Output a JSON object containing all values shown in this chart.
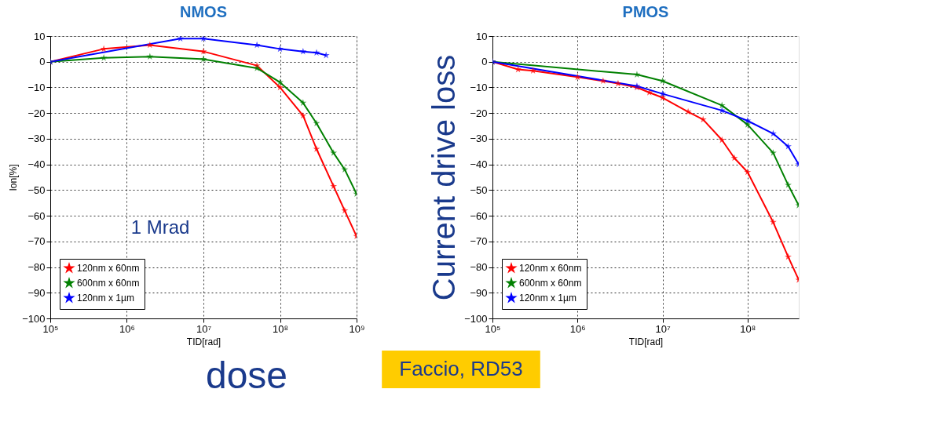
{
  "chart_data": [
    {
      "type": "line",
      "title": "NMOS",
      "xlabel": "TID[rad]",
      "ylabel": "Ion[%]",
      "log": "x",
      "grid": true,
      "legend": "bottom left",
      "marker": "star",
      "line_style": "solid",
      "xlim": [
        100000,
        1000000000
      ],
      "xticks": [
        {
          "value": 100000,
          "label": "10⁵"
        },
        {
          "value": 1000000,
          "label": "10⁶"
        },
        {
          "value": 10000000,
          "label": "10⁷"
        },
        {
          "value": 100000000,
          "label": "10⁸"
        },
        {
          "value": 1000000000,
          "label": "10⁹"
        }
      ],
      "ylim": [
        -100,
        10
      ],
      "yticks": [
        -100,
        -90,
        -80,
        -70,
        -60,
        -50,
        -40,
        -30,
        -20,
        -10,
        0,
        10
      ],
      "annotations": [
        "1 Mrad",
        "dose"
      ],
      "series": [
        {
          "name": "120nm x 60nm",
          "color": "#ff0000",
          "x": [
            100000,
            500000,
            2000000,
            10000000,
            50000000,
            100000000,
            200000000,
            300000000,
            500000000,
            700000000,
            1000000000
          ],
          "values": [
            0,
            5,
            6.5,
            4,
            -1.5,
            -10,
            -21,
            -34,
            -48.5,
            -58,
            -68
          ]
        },
        {
          "name": "600nm x 60nm",
          "color": "#008000",
          "x": [
            100000,
            500000,
            2000000,
            10000000,
            50000000,
            100000000,
            200000000,
            300000000,
            500000000,
            700000000,
            1000000000
          ],
          "values": [
            0,
            1.5,
            2,
            1,
            -2.5,
            -8,
            -16,
            -24,
            -35.5,
            -42,
            -51.5
          ]
        },
        {
          "name": "120nm x 1µm",
          "color": "#0000ff",
          "x": [
            100000,
            5000000,
            10000000,
            50000000,
            100000000,
            200000000,
            300000000,
            400000000
          ],
          "values": [
            0,
            9,
            9,
            6.5,
            5,
            4,
            3.5,
            2.5
          ]
        }
      ]
    },
    {
      "type": "line",
      "title": "PMOS",
      "xlabel": "TID[rad]",
      "ylabel": "Current drive loss",
      "log": "x",
      "grid": true,
      "legend": "bottom left",
      "marker": "star",
      "line_style": "solid",
      "xlim": [
        100000,
        400000000
      ],
      "xticks": [
        {
          "value": 100000,
          "label": "10⁵"
        },
        {
          "value": 1000000,
          "label": "10⁶"
        },
        {
          "value": 10000000,
          "label": "10⁷"
        },
        {
          "value": 100000000,
          "label": "10⁸"
        }
      ],
      "ylim": [
        -100,
        10
      ],
      "yticks": [
        -100,
        -90,
        -80,
        -70,
        -60,
        -50,
        -40,
        -30,
        -20,
        -10,
        0,
        10
      ],
      "annotations": [
        "Faccio, RD53"
      ],
      "series": [
        {
          "name": "120nm x 60nm",
          "color": "#ff0000",
          "x": [
            100000,
            200000,
            300000,
            1000000,
            2000000,
            3000000,
            5000000,
            7000000,
            10000000,
            20000000,
            30000000,
            50000000,
            70000000,
            100000000,
            200000000,
            300000000,
            400000000
          ],
          "values": [
            0,
            -3,
            -3.5,
            -6,
            -7.5,
            -8.5,
            -10,
            -12,
            -14,
            -19.5,
            -22.5,
            -30.5,
            -37.5,
            -43,
            -62.5,
            -76,
            -85
          ]
        },
        {
          "name": "600nm x 60nm",
          "color": "#008000",
          "x": [
            100000,
            5000000,
            10000000,
            50000000,
            100000000,
            200000000,
            300000000,
            400000000
          ],
          "values": [
            0,
            -5,
            -7.5,
            -17,
            -24.5,
            -35.5,
            -48,
            -56
          ]
        },
        {
          "name": "120nm x 1µm",
          "color": "#0000ff",
          "x": [
            100000,
            5000000,
            10000000,
            50000000,
            100000000,
            200000000,
            300000000,
            400000000
          ],
          "values": [
            0,
            -9.5,
            -12.5,
            -19,
            -23,
            -28,
            -33,
            -40
          ]
        }
      ]
    }
  ]
}
